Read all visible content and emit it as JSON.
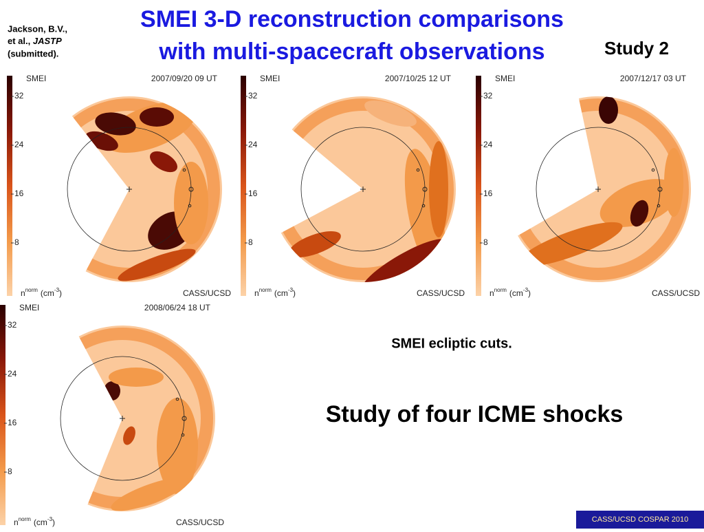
{
  "header": {
    "citation": [
      "Jackson, B.V.,",
      "et al.,",
      "JASTP",
      "(submitted)."
    ],
    "title": [
      "SMEI 3-D reconstruction comparisons",
      "with multi-spacecraft observations"
    ],
    "study": "Study 2"
  },
  "panels": [
    {
      "label": "SMEI",
      "date": "2007/09/20 09 UT",
      "ticks": [
        32,
        24,
        16,
        8
      ],
      "unit": "n",
      "unit_sup": "norm",
      "unit_paren": "(cm",
      "unit_exp": "-3",
      "unit_close": ")",
      "credit": "CASS/UCSD"
    },
    {
      "label": "SMEI",
      "date": "2007/10/25 12 UT",
      "ticks": [
        32,
        24,
        16,
        8
      ],
      "unit": "n",
      "unit_sup": "norm",
      "unit_paren": "(cm",
      "unit_exp": "-3",
      "unit_close": ")",
      "credit": "CASS/UCSD"
    },
    {
      "label": "SMEI",
      "date": "2007/12/17 03 UT",
      "ticks": [
        32,
        24,
        16,
        8
      ],
      "unit": "n",
      "unit_sup": "norm",
      "unit_paren": "(cm",
      "unit_exp": "-3",
      "unit_close": ")",
      "credit": "CASS/UCSD"
    },
    {
      "label": "SMEI",
      "date": "2008/06/24 18 UT",
      "ticks": [
        32,
        24,
        16,
        8
      ],
      "unit": "n",
      "unit_sup": "norm",
      "unit_paren": "(cm",
      "unit_exp": "-3",
      "unit_close": ")",
      "credit": "CASS/UCSD"
    }
  ],
  "captions": {
    "cuts": "SMEI ecliptic cuts.",
    "study": "Study of four ICME shocks"
  },
  "footer": "CASS/UCSD COSPAR 2010"
}
